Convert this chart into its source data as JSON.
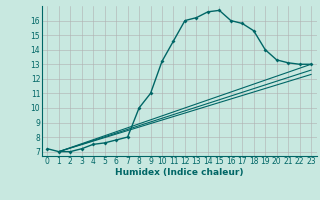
{
  "xlabel": "Humidex (Indice chaleur)",
  "ylabel": "",
  "xlim": [
    -0.5,
    23.5
  ],
  "ylim": [
    6.7,
    17.0
  ],
  "yticks": [
    7,
    8,
    9,
    10,
    11,
    12,
    13,
    14,
    15,
    16
  ],
  "xticks": [
    0,
    1,
    2,
    3,
    4,
    5,
    6,
    7,
    8,
    9,
    10,
    11,
    12,
    13,
    14,
    15,
    16,
    17,
    18,
    19,
    20,
    21,
    22,
    23
  ],
  "background_color": "#c8e8e0",
  "grid_color": "#b0b0b0",
  "line_color": "#006666",
  "line1_x": [
    0,
    1,
    2,
    3,
    4,
    5,
    6,
    7,
    8,
    9,
    10,
    11,
    12,
    13,
    14,
    15,
    16,
    17,
    18,
    19,
    20,
    21,
    22,
    23
  ],
  "line1_y": [
    7.2,
    7.0,
    7.0,
    7.2,
    7.5,
    7.6,
    7.8,
    8.0,
    10.0,
    11.0,
    13.2,
    14.6,
    16.0,
    16.2,
    16.6,
    16.7,
    16.0,
    15.8,
    15.3,
    14.0,
    13.3,
    13.1,
    13.0,
    13.0
  ],
  "line2_x": [
    1,
    23
  ],
  "line2_y": [
    7.0,
    12.3
  ],
  "line3_x": [
    1,
    23
  ],
  "line3_y": [
    7.0,
    12.6
  ],
  "line4_x": [
    1,
    23
  ],
  "line4_y": [
    7.0,
    13.0
  ],
  "tick_fontsize": 5.5,
  "xlabel_fontsize": 6.5
}
